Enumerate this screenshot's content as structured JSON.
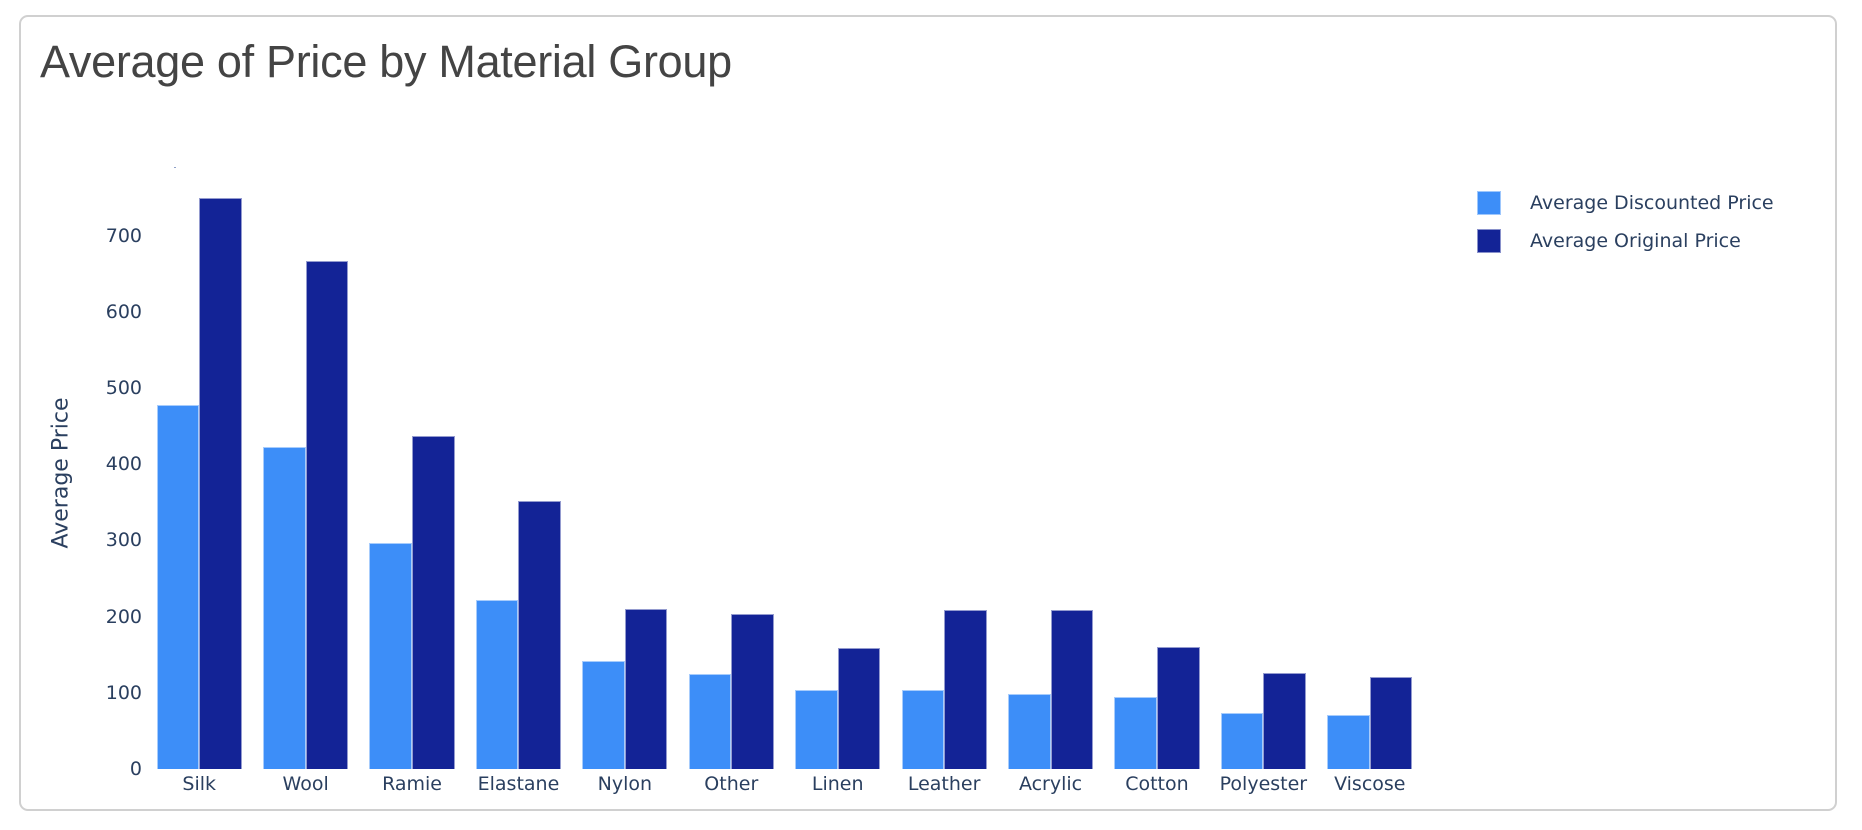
{
  "title": "Average of Price by Material Group",
  "colors": {
    "discounted": "#3d8ef8",
    "original": "#132396",
    "title_text": "#444444",
    "axis_text": "#2a3f5f"
  },
  "legend": {
    "items": [
      {
        "label": "Average Discounted Price",
        "color": "#3d8ef8"
      },
      {
        "label": "Average Original Price",
        "color": "#132396"
      }
    ]
  },
  "chart_data": {
    "type": "bar",
    "title": "Average of Price by Material Group",
    "xlabel": "",
    "ylabel": "Average Price",
    "ylim": [
      0,
      789
    ],
    "yticks": [
      0,
      100,
      200,
      300,
      400,
      500,
      600,
      700
    ],
    "grid": false,
    "legend_position": "top-right",
    "barmode": "group",
    "categories": [
      "Silk",
      "Wool",
      "Ramie",
      "Elastane",
      "Nylon",
      "Other",
      "Linen",
      "Leather",
      "Acrylic",
      "Cotton",
      "Polyester",
      "Viscose"
    ],
    "series": [
      {
        "name": "Average Discounted Price",
        "color": "#3d8ef8",
        "values": [
          478,
          423,
          297,
          222,
          142,
          125,
          104,
          104,
          98,
          95,
          74,
          71
        ]
      },
      {
        "name": "Average Original Price",
        "color": "#132396",
        "values": [
          750,
          667,
          437,
          352,
          210,
          204,
          159,
          209,
          209,
          160,
          126,
          121
        ]
      }
    ]
  }
}
